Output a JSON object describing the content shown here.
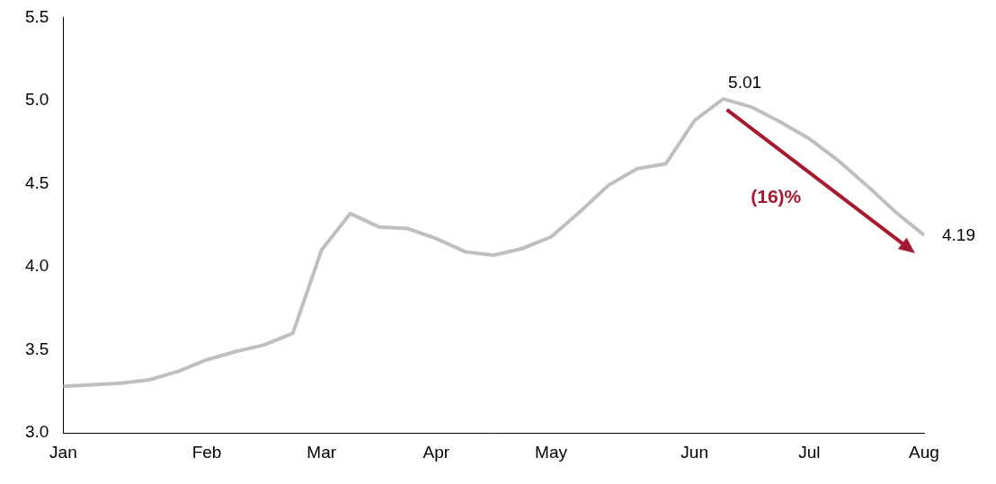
{
  "chart_data": {
    "type": "line",
    "categories": [
      "Jan",
      null,
      null,
      null,
      null,
      "Feb",
      null,
      null,
      null,
      "Mar",
      null,
      null,
      null,
      "Apr",
      null,
      null,
      null,
      "May",
      null,
      null,
      null,
      null,
      "Jun",
      null,
      null,
      null,
      "Jul",
      null,
      null,
      null,
      "Aug"
    ],
    "values": [
      3.28,
      3.29,
      3.3,
      3.32,
      3.37,
      3.44,
      3.49,
      3.53,
      3.6,
      4.1,
      4.32,
      4.24,
      4.23,
      4.17,
      4.09,
      4.07,
      4.11,
      4.18,
      4.33,
      4.49,
      4.59,
      4.62,
      4.88,
      5.01,
      4.96,
      4.87,
      4.77,
      4.64,
      4.49,
      4.33,
      4.19
    ],
    "color": "#bfbfbf",
    "ylim": [
      3,
      5.5
    ],
    "yticks": [
      {
        "value": 3,
        "label": "3.0"
      },
      {
        "value": 3.5,
        "label": "3.5"
      },
      {
        "value": 4,
        "label": "4.0"
      },
      {
        "value": 4.5,
        "label": "4.5"
      },
      {
        "value": 5,
        "label": "5.0"
      },
      {
        "value": 5.5,
        "label": "5.5"
      }
    ],
    "grid": false,
    "annotations": [
      {
        "text": "5.01"
      },
      {
        "text": "4.19"
      },
      {
        "text": "(16)%",
        "color": "#a6192e"
      }
    ]
  }
}
